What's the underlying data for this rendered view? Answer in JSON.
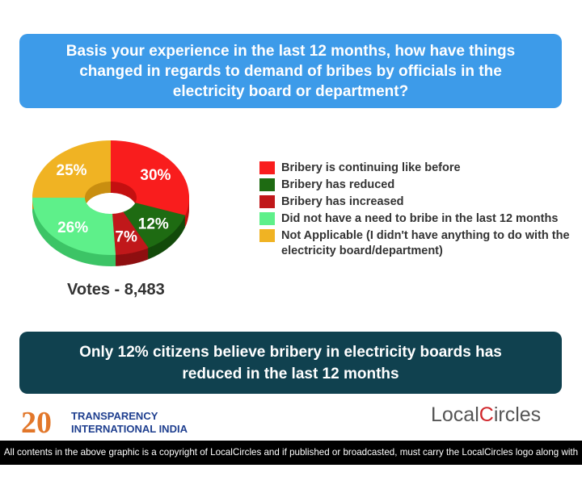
{
  "question": "Basis your experience in the last 12 months, how have things changed in regards to demand of bribes by officials in the electricity board or department?",
  "chart_data": {
    "type": "pie",
    "title": "Basis your experience in the last 12 months, how have things changed in regards to demand of bribes by officials in the electricity board or department?",
    "slices": [
      {
        "label": "Bribery is continuing like before",
        "value": 30,
        "display": "30%",
        "color": "#f91d1d",
        "side": "#c41010"
      },
      {
        "label": "Bribery has reduced",
        "value": 12,
        "display": "12%",
        "color": "#1e6b12",
        "side": "#124a0a"
      },
      {
        "label": "Bribery has increased",
        "value": 7,
        "display": "7%",
        "color": "#c0181a",
        "side": "#8e0f10"
      },
      {
        "label": "Did not have a need to bribe in the last 12 months",
        "value": 26,
        "display": "26%",
        "color": "#5ef08a",
        "side": "#3cc466"
      },
      {
        "label": "Not Applicable (I didn't have anything to do with the electricity board/department)",
        "value": 25,
        "display": "25%",
        "color": "#f0b323",
        "side": "#c98e10"
      }
    ],
    "legend_position": "right"
  },
  "votes": "Votes - 8,483",
  "conclusion": "Only 12% citizens believe bribery in electricity boards has reduced in the last 12 months",
  "logos": {
    "ti_number": "20",
    "ti_line1": "TRANSPARENCY",
    "ti_line2": "INTERNATIONAL INDIA",
    "lc_a": "Local",
    "lc_b": "C",
    "lc_c": "ircles"
  },
  "footer": "All contents in the above graphic is a copyright of LocalCircles and if published or broadcasted, must carry the LocalCircles logo along with it."
}
